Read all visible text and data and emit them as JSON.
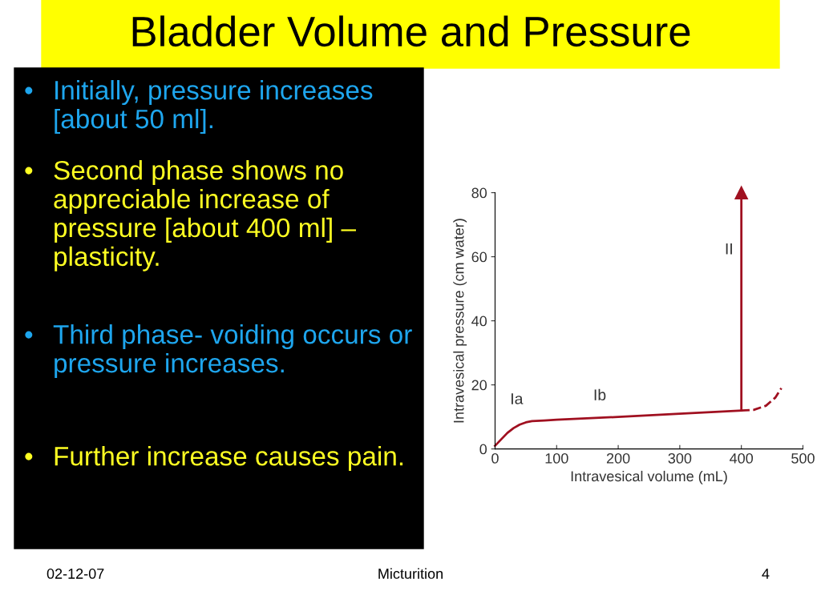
{
  "chart_data": {
    "type": "line",
    "title": "Bladder Volume and Pressure",
    "xlabel": "Intravesical volume (mL)",
    "ylabel": "Intravesical pressure (cm water)",
    "xlim": [
      0,
      500
    ],
    "xticks": [
      0,
      100,
      200,
      300,
      400,
      500
    ],
    "ylim": [
      0,
      80
    ],
    "yticks": [
      0,
      20,
      40,
      60,
      80
    ],
    "grid": false,
    "legend": false,
    "marker": "none",
    "series": [
      {
        "color": "#a01020",
        "line_style": "solid",
        "x": [
          0,
          10,
          20,
          30,
          40,
          50,
          60,
          80,
          100,
          200,
          300,
          400
        ],
        "values": [
          1,
          3,
          5,
          6.5,
          7.6,
          8.3,
          8.7,
          8.9,
          9.1,
          10,
          11,
          12
        ]
      },
      {
        "color": "#a01020",
        "line_style": "dashed",
        "x": [
          400,
          420,
          440,
          455,
          465
        ],
        "values": [
          12,
          12.2,
          13.5,
          16,
          19
        ]
      },
      {
        "color": "#a01020",
        "line_style": "solid",
        "marker": "triangle",
        "x": [
          400,
          400
        ],
        "values": [
          12,
          80
        ]
      }
    ],
    "annotations": [
      "Ia",
      "Ib",
      "II",
      "• Initially, pressure increases [about 50 ml].",
      "• Second phase shows no appreciable increase of pressure [about 400 ml] – plasticity.",
      "• Third phase- voiding occurs or pressure increases.",
      "• Further increase causes pain.",
      "02-12-07",
      "Micturition",
      "4"
    ]
  }
}
